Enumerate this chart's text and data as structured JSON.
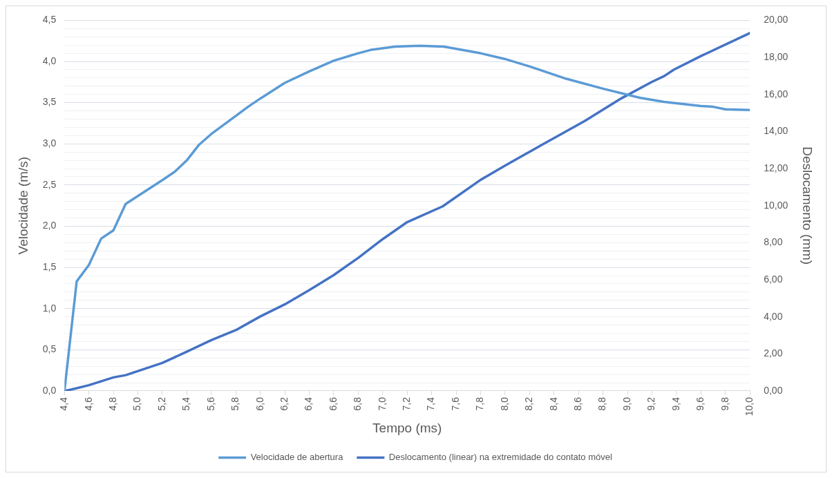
{
  "chart_data": {
    "type": "line",
    "xlabel": "Tempo (ms)",
    "ylabel": "Velocidade (m/s)",
    "y2label": "Deslocamento (mm)",
    "xlim": [
      4.4,
      10.0
    ],
    "xticks": [
      {
        "value": 4.4,
        "label": "4,4"
      },
      {
        "value": 4.6,
        "label": "4,6"
      },
      {
        "value": 4.8,
        "label": "4,8"
      },
      {
        "value": 5.0,
        "label": "5,0"
      },
      {
        "value": 5.2,
        "label": "5,2"
      },
      {
        "value": 5.4,
        "label": "5,4"
      },
      {
        "value": 5.6,
        "label": "5,6"
      },
      {
        "value": 5.8,
        "label": "5,8"
      },
      {
        "value": 6.0,
        "label": "6,0"
      },
      {
        "value": 6.2,
        "label": "6,2"
      },
      {
        "value": 6.4,
        "label": "6,4"
      },
      {
        "value": 6.6,
        "label": "6,6"
      },
      {
        "value": 6.8,
        "label": "6,8"
      },
      {
        "value": 7.0,
        "label": "7,0"
      },
      {
        "value": 7.2,
        "label": "7,2"
      },
      {
        "value": 7.4,
        "label": "7,4"
      },
      {
        "value": 7.6,
        "label": "7,6"
      },
      {
        "value": 7.8,
        "label": "7,8"
      },
      {
        "value": 8.0,
        "label": "8,0"
      },
      {
        "value": 8.2,
        "label": "8,2"
      },
      {
        "value": 8.4,
        "label": "8,4"
      },
      {
        "value": 8.6,
        "label": "8,6"
      },
      {
        "value": 8.8,
        "label": "8,8"
      },
      {
        "value": 9.0,
        "label": "9,0"
      },
      {
        "value": 9.2,
        "label": "9,2"
      },
      {
        "value": 9.4,
        "label": "9,4"
      },
      {
        "value": 9.6,
        "label": "9,6"
      },
      {
        "value": 9.8,
        "label": "9,8"
      },
      {
        "value": 10.0,
        "label": "10,0"
      }
    ],
    "ylim": [
      0,
      4.5
    ],
    "yticks": [
      {
        "value": 0,
        "label": "0,0"
      },
      {
        "value": 0.1,
        "label": null
      },
      {
        "value": 0.2,
        "label": null
      },
      {
        "value": 0.3,
        "label": null
      },
      {
        "value": 0.4,
        "label": null
      },
      {
        "value": 0.5,
        "label": "0,5"
      },
      {
        "value": 0.6,
        "label": null
      },
      {
        "value": 0.7,
        "label": null
      },
      {
        "value": 0.8,
        "label": null
      },
      {
        "value": 0.9,
        "label": null
      },
      {
        "value": 1.0,
        "label": "1,0"
      },
      {
        "value": 1.1,
        "label": null
      },
      {
        "value": 1.2,
        "label": null
      },
      {
        "value": 1.3,
        "label": null
      },
      {
        "value": 1.4,
        "label": null
      },
      {
        "value": 1.5,
        "label": "1,5"
      },
      {
        "value": 1.6,
        "label": null
      },
      {
        "value": 1.7,
        "label": null
      },
      {
        "value": 1.8,
        "label": null
      },
      {
        "value": 1.9,
        "label": null
      },
      {
        "value": 2.0,
        "label": "2,0"
      },
      {
        "value": 2.1,
        "label": null
      },
      {
        "value": 2.2,
        "label": null
      },
      {
        "value": 2.3,
        "label": null
      },
      {
        "value": 2.4,
        "label": null
      },
      {
        "value": 2.5,
        "label": "2,5"
      },
      {
        "value": 2.6,
        "label": null
      },
      {
        "value": 2.7,
        "label": null
      },
      {
        "value": 2.8,
        "label": null
      },
      {
        "value": 2.9,
        "label": null
      },
      {
        "value": 3.0,
        "label": "3,0"
      },
      {
        "value": 3.1,
        "label": null
      },
      {
        "value": 3.2,
        "label": null
      },
      {
        "value": 3.3,
        "label": null
      },
      {
        "value": 3.4,
        "label": null
      },
      {
        "value": 3.5,
        "label": "3,5"
      },
      {
        "value": 3.6,
        "label": null
      },
      {
        "value": 3.7,
        "label": null
      },
      {
        "value": 3.8,
        "label": null
      },
      {
        "value": 3.9,
        "label": null
      },
      {
        "value": 4.0,
        "label": "4,0"
      },
      {
        "value": 4.1,
        "label": null
      },
      {
        "value": 4.2,
        "label": null
      },
      {
        "value": 4.3,
        "label": null
      },
      {
        "value": 4.4,
        "label": null
      },
      {
        "value": 4.5,
        "label": "4,5"
      }
    ],
    "y2lim": [
      0,
      20
    ],
    "y2ticks": [
      {
        "value": 0,
        "label": "0,00"
      },
      {
        "value": 2,
        "label": "2,00"
      },
      {
        "value": 4,
        "label": "4,00"
      },
      {
        "value": 6,
        "label": "6,00"
      },
      {
        "value": 8,
        "label": "8,00"
      },
      {
        "value": 10,
        "label": "10,00"
      },
      {
        "value": 12,
        "label": "12,00"
      },
      {
        "value": 14,
        "label": "14,00"
      },
      {
        "value": 16,
        "label": "16,00"
      },
      {
        "value": 18,
        "label": "18,00"
      },
      {
        "value": 20,
        "label": "20,00"
      }
    ],
    "grid": "y",
    "legend": "bottom",
    "marker": "none",
    "line_style": "solid",
    "series": [
      {
        "name": "Velocidade de abertura",
        "color": "#5b9bd5",
        "x": [
          4.4,
          4.5,
          4.6,
          4.7,
          4.8,
          4.9,
          5.2,
          5.3,
          5.4,
          5.5,
          5.6,
          5.7,
          5.9,
          6.0,
          6.2,
          6.4,
          6.6,
          6.8,
          6.9,
          7.1,
          7.3,
          7.5,
          7.8,
          8.0,
          8.2,
          8.5,
          8.8,
          9.1,
          9.3,
          9.6,
          9.7,
          9.8,
          10.0
        ],
        "values": [
          0,
          1.33,
          1.53,
          1.85,
          1.95,
          2.27,
          2.56,
          2.66,
          2.8,
          2.99,
          3.12,
          3.23,
          3.45,
          3.55,
          3.74,
          3.88,
          4.01,
          4.1,
          4.14,
          4.18,
          4.19,
          4.18,
          4.1,
          4.03,
          3.94,
          3.79,
          3.67,
          3.56,
          3.51,
          3.46,
          3.45,
          3.42,
          3.41
        ]
      },
      {
        "name": "Deslocamento (linear) na extremidade do contato móvel",
        "color": "#4472c4",
        "axis": "y2",
        "x": [
          4.4,
          4.46,
          4.6,
          4.8,
          4.9,
          5.2,
          5.4,
          5.6,
          5.8,
          6.0,
          6.2,
          6.4,
          6.6,
          6.8,
          7.0,
          7.2,
          7.49,
          7.8,
          8.0,
          8.3,
          8.65,
          8.95,
          9.2,
          9.3,
          9.38,
          9.6,
          10.0
        ],
        "values": [
          0,
          0.08,
          0.31,
          0.73,
          0.85,
          1.51,
          2.12,
          2.74,
          3.28,
          4.02,
          4.67,
          5.44,
          6.25,
          7.18,
          8.19,
          9.11,
          9.96,
          11.39,
          12.16,
          13.28,
          14.56,
          15.79,
          16.68,
          16.99,
          17.34,
          18.07,
          19.31
        ]
      }
    ]
  }
}
